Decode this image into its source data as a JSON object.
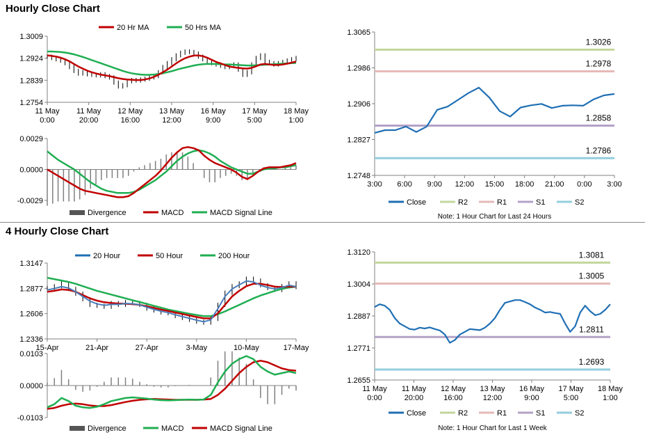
{
  "colors": {
    "blue": "#1f6fb4",
    "red": "#c00000",
    "green": "#1fae52",
    "gray": "#7f7f7f",
    "r2": "#c3d69b",
    "r1": "#e6b9b8",
    "s1": "#b3a2c7",
    "s2": "#93cddd",
    "bar": "#555555"
  },
  "section1": {
    "title": "Hourly Close Chart"
  },
  "section2": {
    "title": "4 Hourly Close Chart"
  },
  "chart_data": [
    {
      "id": "hourly_price",
      "type": "line",
      "legend": [
        "20 Hr MA",
        "50 Hrs MA"
      ],
      "yticks": [
        "1.3009",
        "1.2924",
        "1.2839",
        "1.2754"
      ],
      "ylim": [
        1.2754,
        1.3009
      ],
      "xticks": [
        [
          "11 May",
          "0:00"
        ],
        [
          "11 May",
          "20:00"
        ],
        [
          "12 May",
          "16:00"
        ],
        [
          "13 May",
          "12:00"
        ],
        [
          "16 May",
          "9:00"
        ],
        [
          "17 May",
          "5:00"
        ],
        [
          "18 May",
          "1:00"
        ]
      ],
      "close": [
        1.293,
        1.2925,
        1.292,
        1.2915,
        1.2905,
        1.289,
        1.2875,
        1.2865,
        1.287,
        1.2862,
        1.286,
        1.2858,
        1.2862,
        1.2855,
        1.285,
        1.283,
        1.2815,
        1.282,
        1.2835,
        1.284,
        1.2838,
        1.2842,
        1.2845,
        1.285,
        1.2855,
        1.287,
        1.289,
        1.2905,
        1.292,
        1.2935,
        1.2945,
        1.295,
        1.2948,
        1.2942,
        1.293,
        1.292,
        1.291,
        1.2905,
        1.29,
        1.2895,
        1.289,
        1.2895,
        1.29,
        1.288,
        1.286,
        1.287,
        1.29,
        1.2925,
        1.2935,
        1.291,
        1.2905,
        1.29,
        1.2905,
        1.291,
        1.2915,
        1.292,
        1.2925
      ],
      "ma20": [
        1.2935,
        1.2933,
        1.293,
        1.2926,
        1.292,
        1.2912,
        1.2902,
        1.2892,
        1.2884,
        1.2876,
        1.287,
        1.2865,
        1.2861,
        1.2858,
        1.2855,
        1.2851,
        1.2847,
        1.2844,
        1.2842,
        1.2841,
        1.284,
        1.284,
        1.2842,
        1.2846,
        1.2852,
        1.286,
        1.287,
        1.288,
        1.2892,
        1.2904,
        1.2915,
        1.2924,
        1.293,
        1.2934,
        1.2935,
        1.2932,
        1.2926,
        1.2918,
        1.291,
        1.2904,
        1.2898,
        1.2892,
        1.2889,
        1.2887,
        1.2885,
        1.2884,
        1.2887,
        1.2893,
        1.29,
        1.2902,
        1.29,
        1.2898,
        1.2898,
        1.29,
        1.2903,
        1.2907,
        1.2911
      ],
      "ma50": [
        1.295,
        1.295,
        1.2949,
        1.2948,
        1.2946,
        1.2943,
        1.2939,
        1.2934,
        1.2929,
        1.2923,
        1.2917,
        1.2911,
        1.2905,
        1.2899,
        1.2893,
        1.2887,
        1.2881,
        1.2875,
        1.287,
        1.2866,
        1.2863,
        1.2861,
        1.286,
        1.286,
        1.2861,
        1.2863,
        1.2866,
        1.287,
        1.2874,
        1.2879,
        1.2884,
        1.2888,
        1.2892,
        1.2896,
        1.2899,
        1.2901,
        1.2902,
        1.2902,
        1.2902,
        1.2901,
        1.29,
        1.29,
        1.2899,
        1.2898,
        1.2897,
        1.2896,
        1.2896,
        1.2897,
        1.2898,
        1.2899,
        1.29,
        1.2901,
        1.2902,
        1.2903,
        1.2904,
        1.2905,
        1.2906
      ]
    },
    {
      "id": "hourly_macd",
      "type": "line",
      "legend": [
        "Divergence",
        "MACD",
        "MACD Signal Line"
      ],
      "yticks": [
        "0.0029",
        "0.0000",
        "-0.0029"
      ],
      "ylim": [
        -0.0029,
        0.0029
      ],
      "macd": [
        0.0,
        -0.0003,
        -0.0006,
        -0.0009,
        -0.0012,
        -0.0015,
        -0.0018,
        -0.002,
        -0.0021,
        -0.0022,
        -0.0023,
        -0.0024,
        -0.0025,
        -0.0026,
        -0.0026,
        -0.0025,
        -0.0022,
        -0.0018,
        -0.0014,
        -0.001,
        -0.0006,
        -0.0001,
        0.0005,
        0.0011,
        0.0016,
        0.002,
        0.0021,
        0.002,
        0.0018,
        0.0013,
        0.0009,
        0.0006,
        0.0004,
        0.0002,
        0.0,
        -0.0003,
        -0.0007,
        -0.0009,
        -0.0006,
        -0.0002,
        0.0001,
        0.0002,
        0.0002,
        0.0002,
        0.0003,
        0.0004,
        0.0006
      ],
      "signal": [
        0.0017,
        0.0013,
        0.0009,
        0.0006,
        0.0003,
        0.0,
        -0.0004,
        -0.0008,
        -0.0012,
        -0.0015,
        -0.0018,
        -0.002,
        -0.0021,
        -0.0022,
        -0.0022,
        -0.0022,
        -0.0021,
        -0.0019,
        -0.0016,
        -0.0013,
        -0.001,
        -0.0006,
        -0.0002,
        0.0003,
        0.0008,
        0.0012,
        0.0015,
        0.0017,
        0.0018,
        0.0017,
        0.0015,
        0.0012,
        0.0008,
        0.0005,
        0.0002,
        0.0,
        -0.0002,
        -0.0004,
        -0.0004,
        -0.0002,
        0.0,
        0.0001,
        0.0001,
        0.0002,
        0.0002,
        0.0003,
        0.0004
      ]
    },
    {
      "id": "hourly_24h",
      "type": "line",
      "yticks": [
        "1.3065",
        "1.2986",
        "1.2906",
        "1.2827",
        "1.2748"
      ],
      "ylim": [
        1.2748,
        1.3065
      ],
      "xticks": [
        "3:00",
        "6:00",
        "9:00",
        "12:00",
        "15:00",
        "18:00",
        "21:00",
        "0:00",
        "3:00"
      ],
      "close": [
        1.2842,
        1.2848,
        1.2848,
        1.2856,
        1.2844,
        1.2856,
        1.2893,
        1.29,
        1.2915,
        1.293,
        1.2942,
        1.292,
        1.289,
        1.2878,
        1.2898,
        1.2903,
        1.2906,
        1.2897,
        1.2902,
        1.2903,
        1.2902,
        1.2916,
        1.2925,
        1.2928
      ],
      "levels": {
        "R2": 1.3026,
        "R1": 1.2978,
        "S1": 1.2858,
        "S2": 1.2786
      },
      "legend": [
        "Close",
        "R2",
        "R1",
        "S1",
        "S2"
      ],
      "level_labels": [
        "1.3026",
        "1.2978",
        "1.2858",
        "1.2786"
      ],
      "note": "Note: 1 Hour Chart for Last 24 Hours"
    },
    {
      "id": "4h_price",
      "type": "line",
      "legend": [
        "20 Hour",
        "50 Hour",
        "200 Hour"
      ],
      "yticks": [
        "1.3147",
        "1.2877",
        "1.2606",
        "1.2336"
      ],
      "ylim": [
        1.2336,
        1.3147
      ],
      "xticks": [
        "15-Apr",
        "21-Apr",
        "27-Apr",
        "3-May",
        "10-May",
        "17-May"
      ],
      "close": [
        1.288,
        1.29,
        1.293,
        1.287,
        1.282,
        1.276,
        1.27,
        1.269,
        1.268,
        1.272,
        1.27,
        1.273,
        1.272,
        1.27,
        1.266,
        1.264,
        1.262,
        1.261,
        1.258,
        1.256,
        1.254,
        1.252,
        1.251,
        1.255,
        1.27,
        1.283,
        1.29,
        1.293,
        1.298,
        1.296,
        1.291,
        1.288,
        1.286,
        1.29,
        1.293,
        1.289
      ],
      "ma20": [
        1.286,
        1.2875,
        1.2895,
        1.288,
        1.284,
        1.279,
        1.274,
        1.271,
        1.2695,
        1.2705,
        1.2705,
        1.2715,
        1.2712,
        1.27,
        1.2675,
        1.2652,
        1.2632,
        1.2617,
        1.2594,
        1.2575,
        1.2556,
        1.2537,
        1.252,
        1.254,
        1.266,
        1.279,
        1.287,
        1.2915,
        1.2955,
        1.2945,
        1.291,
        1.2885,
        1.287,
        1.2885,
        1.291,
        1.2895
      ],
      "ma50": [
        1.284,
        1.285,
        1.2865,
        1.286,
        1.284,
        1.2805,
        1.277,
        1.2745,
        1.2728,
        1.272,
        1.2715,
        1.2712,
        1.2708,
        1.27,
        1.2685,
        1.2668,
        1.265,
        1.2635,
        1.2618,
        1.2602,
        1.2586,
        1.257,
        1.2556,
        1.2555,
        1.261,
        1.27,
        1.279,
        1.285,
        1.29,
        1.2925,
        1.2925,
        1.2912,
        1.2895,
        1.289,
        1.2895,
        1.2895
      ],
      "ma200": [
        1.299,
        1.2975,
        1.296,
        1.2945,
        1.2925,
        1.29,
        1.2875,
        1.285,
        1.283,
        1.281,
        1.279,
        1.277,
        1.275,
        1.273,
        1.271,
        1.269,
        1.267,
        1.265,
        1.2635,
        1.262,
        1.2605,
        1.2592,
        1.258,
        1.258,
        1.26,
        1.263,
        1.2665,
        1.27,
        1.2735,
        1.277,
        1.28,
        1.2825,
        1.285,
        1.287,
        1.2885,
        1.2895
      ]
    },
    {
      "id": "4h_macd",
      "type": "line",
      "legend": [
        "Divergence",
        "MACD",
        "MACD Signal Line"
      ],
      "yticks": [
        "0.0103",
        "0.0000",
        "-0.0103"
      ],
      "ylim": [
        -0.0103,
        0.0103
      ],
      "macd": [
        -0.007,
        -0.006,
        -0.004,
        -0.005,
        -0.0065,
        -0.007,
        -0.0072,
        -0.0068,
        -0.006,
        -0.005,
        -0.0045,
        -0.004,
        -0.0038,
        -0.004,
        -0.0042,
        -0.0045,
        -0.0047,
        -0.0048,
        -0.0047,
        -0.0046,
        -0.0045,
        -0.0046,
        -0.0045,
        -0.003,
        0.001,
        0.0045,
        0.007,
        0.0085,
        0.0095,
        0.0085,
        0.006,
        0.0045,
        0.0035,
        0.004,
        0.0045,
        0.004
      ],
      "signal": [
        -0.0075,
        -0.0072,
        -0.0065,
        -0.006,
        -0.0058,
        -0.006,
        -0.0064,
        -0.0066,
        -0.0066,
        -0.0063,
        -0.0058,
        -0.0053,
        -0.0049,
        -0.0046,
        -0.0044,
        -0.0043,
        -0.0044,
        -0.0045,
        -0.0046,
        -0.0046,
        -0.0046,
        -0.0046,
        -0.0045,
        -0.0043,
        -0.003,
        -0.001,
        0.0015,
        0.004,
        0.006,
        0.0075,
        0.008,
        0.0075,
        0.0065,
        0.0055,
        0.005,
        0.0048
      ]
    },
    {
      "id": "hourly_week",
      "type": "line",
      "yticks": [
        "1.3120",
        "1.3004",
        "1.2887",
        "1.2771",
        "1.2655"
      ],
      "ylim": [
        1.2655,
        1.312
      ],
      "xticks": [
        [
          "11 May",
          "0:00"
        ],
        [
          "11 May",
          "20:00"
        ],
        [
          "12 May",
          "16:00"
        ],
        [
          "13 May",
          "12:00"
        ],
        [
          "16 May",
          "9:00"
        ],
        [
          "17 May",
          "5:00"
        ],
        [
          "18 May",
          "1:00"
        ]
      ],
      "close": [
        1.292,
        1.293,
        1.2925,
        1.291,
        1.288,
        1.286,
        1.285,
        1.284,
        1.2838,
        1.2845,
        1.2842,
        1.2846,
        1.284,
        1.2835,
        1.282,
        1.279,
        1.28,
        1.282,
        1.283,
        1.284,
        1.2838,
        1.2836,
        1.2845,
        1.286,
        1.288,
        1.291,
        1.2935,
        1.294,
        1.2945,
        1.2945,
        1.2938,
        1.293,
        1.2918,
        1.291,
        1.29,
        1.2902,
        1.2898,
        1.2895,
        1.286,
        1.283,
        1.285,
        1.29,
        1.2925,
        1.2905,
        1.289,
        1.2895,
        1.291,
        1.293
      ],
      "levels": {
        "R2": 1.3081,
        "R1": 1.3005,
        "S1": 1.2811,
        "S2": 1.2693
      },
      "legend": [
        "Close",
        "R2",
        "R1",
        "S1",
        "S2"
      ],
      "level_labels": [
        "1.3081",
        "1.3005",
        "1.2811",
        "1.2693"
      ],
      "note": "Note: 1 Hour Chart for  Last 1 Week"
    }
  ]
}
